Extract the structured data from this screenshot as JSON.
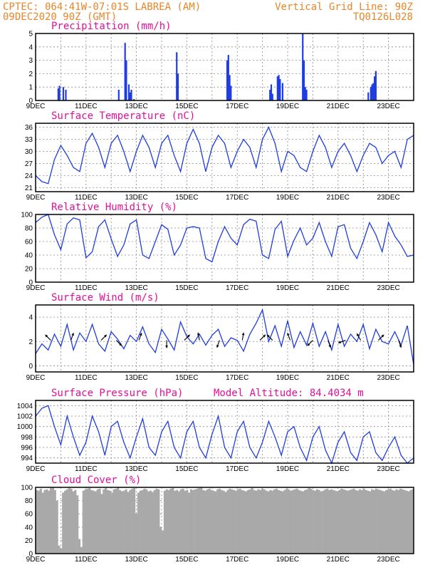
{
  "header": {
    "line1_left": "CPTEC:   064:41W-07:01S  LABREA (AM)",
    "line2_left": "09DEC2020 90Z (GMT)",
    "line1_right": "Vertical Grid Line: 90Z",
    "line2_right": "TQ0126L028"
  },
  "colors": {
    "series": "#1f3de0",
    "title": "#e0109a",
    "header": "#e8862a",
    "cloud": "#a9a9a9"
  },
  "x_axis": {
    "labels": [
      "9DEC",
      "11DEC",
      "13DEC",
      "15DEC",
      "17DEC",
      "19DEC",
      "21DEC",
      "23DEC"
    ],
    "label_days": [
      0,
      2,
      4,
      6,
      8,
      10,
      12,
      14
    ],
    "day_range": [
      0,
      15
    ]
  },
  "chart_data": [
    {
      "type": "bar",
      "title": "Precipitation (mm/h)",
      "ylim": [
        0,
        5
      ],
      "yticks": [
        "0",
        "1",
        "2",
        "3",
        "4",
        "5"
      ],
      "x": [
        0.9,
        0.95,
        1.1,
        1.2,
        3.3,
        3.55,
        3.6,
        3.7,
        3.75,
        3.8,
        3.9,
        5.6,
        5.65,
        7.6,
        7.65,
        7.7,
        7.75,
        9.3,
        9.35,
        9.4,
        9.6,
        9.65,
        9.7,
        9.8,
        10.6,
        10.65,
        10.7,
        10.75,
        13.2,
        13.3,
        13.35,
        13.4,
        13.45,
        13.5
      ],
      "values": [
        0.9,
        1.1,
        1.0,
        0.8,
        0.8,
        4.3,
        3.0,
        1.2,
        0.6,
        0.8,
        0.1,
        3.6,
        2.0,
        3.0,
        3.4,
        1.9,
        1.1,
        0.8,
        1.2,
        0.5,
        1.8,
        1.9,
        1.6,
        1.3,
        5.0,
        3.0,
        1.0,
        0.8,
        0.6,
        1.0,
        1.2,
        1.3,
        1.8,
        2.2
      ]
    },
    {
      "type": "line",
      "title": "Surface Temperature (nC)",
      "ylim": [
        20,
        37
      ],
      "yticks": [
        "21",
        "24",
        "27",
        "30",
        "33",
        "36"
      ],
      "x": [
        0,
        0.25,
        0.5,
        0.75,
        1,
        1.25,
        1.5,
        1.75,
        2,
        2.25,
        2.5,
        2.75,
        3,
        3.25,
        3.5,
        3.75,
        4,
        4.25,
        4.5,
        4.75,
        5,
        5.25,
        5.5,
        5.75,
        6,
        6.25,
        6.5,
        6.75,
        7,
        7.25,
        7.5,
        7.75,
        8,
        8.25,
        8.5,
        8.75,
        9,
        9.25,
        9.5,
        9.75,
        10,
        10.25,
        10.5,
        10.75,
        11,
        11.25,
        11.5,
        11.75,
        12,
        12.25,
        12.5,
        12.75,
        13,
        13.25,
        13.5,
        13.75,
        14,
        14.25,
        14.5,
        14.75,
        15
      ],
      "values": [
        24,
        22.5,
        22,
        28,
        31.5,
        29,
        26,
        25,
        32,
        34.5,
        31,
        26,
        32,
        34,
        30,
        25,
        30,
        34,
        31,
        26,
        32,
        34,
        29,
        25,
        32,
        35.5,
        32,
        25,
        31,
        34,
        32,
        26,
        30,
        33,
        31,
        26,
        33,
        36,
        32,
        25,
        30,
        29,
        26,
        25,
        30,
        34,
        31,
        26,
        30,
        32,
        29,
        25,
        29,
        32,
        31,
        27,
        29,
        30,
        26,
        33,
        34
      ]
    },
    {
      "type": "line",
      "title": "Relative Humidity (%)",
      "ylim": [
        0,
        100
      ],
      "yticks": [
        "0",
        "20",
        "40",
        "60",
        "80",
        "100"
      ],
      "x": [
        0,
        0.25,
        0.5,
        0.75,
        1,
        1.25,
        1.5,
        1.75,
        2,
        2.25,
        2.5,
        2.75,
        3,
        3.25,
        3.5,
        3.75,
        4,
        4.25,
        4.5,
        4.75,
        5,
        5.25,
        5.5,
        5.75,
        6,
        6.25,
        6.5,
        6.75,
        7,
        7.25,
        7.5,
        7.75,
        8,
        8.25,
        8.5,
        8.75,
        9,
        9.25,
        9.5,
        9.75,
        10,
        10.25,
        10.5,
        10.75,
        11,
        11.25,
        11.5,
        11.75,
        12,
        12.25,
        12.5,
        12.75,
        13,
        13.25,
        13.5,
        13.75,
        14,
        14.25,
        14.5,
        14.75,
        15
      ],
      "values": [
        88,
        96,
        100,
        70,
        48,
        86,
        95,
        92,
        36,
        45,
        82,
        92,
        64,
        38,
        55,
        86,
        92,
        40,
        35,
        60,
        85,
        78,
        40,
        55,
        80,
        82,
        80,
        35,
        30,
        60,
        82,
        65,
        55,
        85,
        93,
        90,
        40,
        35,
        78,
        90,
        38,
        62,
        80,
        55,
        65,
        88,
        60,
        38,
        82,
        85,
        50,
        35,
        60,
        88,
        70,
        45,
        88,
        68,
        55,
        38,
        40
      ]
    },
    {
      "type": "line",
      "title": "Surface Wind (m/s)",
      "ylim": [
        -0.5,
        5
      ],
      "yticks": [
        "0",
        "2",
        "4"
      ],
      "x": [
        0,
        0.25,
        0.5,
        0.75,
        1,
        1.25,
        1.5,
        1.75,
        2,
        2.25,
        2.5,
        2.75,
        3,
        3.25,
        3.5,
        3.75,
        4,
        4.25,
        4.5,
        4.75,
        5,
        5.25,
        5.5,
        5.75,
        6,
        6.25,
        6.5,
        6.75,
        7,
        7.25,
        7.5,
        7.75,
        8,
        8.25,
        8.5,
        8.75,
        9,
        9.25,
        9.5,
        9.75,
        10,
        10.25,
        10.5,
        10.75,
        11,
        11.25,
        11.5,
        11.75,
        12,
        12.25,
        12.5,
        12.75,
        13,
        13.25,
        13.5,
        13.75,
        14,
        14.25,
        14.5,
        14.75,
        15
      ],
      "values": [
        1,
        1.8,
        1.3,
        2.6,
        1.6,
        3.4,
        1.3,
        2.7,
        2,
        3.4,
        1.8,
        1.2,
        2.8,
        2.2,
        1.4,
        2.5,
        2,
        3.2,
        1.8,
        1.1,
        3,
        2.2,
        1.3,
        3.6,
        2.4,
        1.8,
        2.6,
        1.7,
        2.5,
        3,
        1.6,
        2.3,
        2.1,
        1.2,
        2.6,
        3.5,
        4.6,
        2,
        3.3,
        1.6,
        3.7,
        1.5,
        2.8,
        1.7,
        3.5,
        1.6,
        2.8,
        1.3,
        3.4,
        1.6,
        2.6,
        2,
        3.4,
        1.4,
        3,
        2,
        1.8,
        2.8,
        1.7,
        3.3,
        0.1
      ],
      "arrows": [
        {
          "day": 0.6,
          "dir": 315
        },
        {
          "day": 1.4,
          "dir": 20
        },
        {
          "day": 2.6,
          "dir": 45
        },
        {
          "day": 3.2,
          "dir": 135
        },
        {
          "day": 4.1,
          "dir": 20
        },
        {
          "day": 5.2,
          "dir": 180
        },
        {
          "day": 5.9,
          "dir": 45
        },
        {
          "day": 6.5,
          "dir": 350
        },
        {
          "day": 7.3,
          "dir": 200
        },
        {
          "day": 8.2,
          "dir": 10
        },
        {
          "day": 8.9,
          "dir": 45
        },
        {
          "day": 9.4,
          "dir": 315
        },
        {
          "day": 10.1,
          "dir": 340
        },
        {
          "day": 11.0,
          "dir": 225
        },
        {
          "day": 11.6,
          "dir": 160
        },
        {
          "day": 12.3,
          "dir": 250
        },
        {
          "day": 12.9,
          "dir": 330
        },
        {
          "day": 13.6,
          "dir": 45
        },
        {
          "day": 14.4,
          "dir": 160
        }
      ]
    },
    {
      "type": "line",
      "title": "Surface Pressure (hPa)",
      "annotation": "Model Altitude: 84.4034 m",
      "ylim": [
        993,
        1005
      ],
      "yticks": [
        "994",
        "996",
        "998",
        "1000",
        "1002",
        "1004"
      ],
      "x": [
        0,
        0.25,
        0.5,
        0.75,
        1,
        1.25,
        1.5,
        1.75,
        2,
        2.25,
        2.5,
        2.75,
        3,
        3.25,
        3.5,
        3.75,
        4,
        4.25,
        4.5,
        4.75,
        5,
        5.25,
        5.5,
        5.75,
        6,
        6.25,
        6.5,
        6.75,
        7,
        7.25,
        7.5,
        7.75,
        8,
        8.25,
        8.5,
        8.75,
        9,
        9.25,
        9.5,
        9.75,
        10,
        10.25,
        10.5,
        10.75,
        11,
        11.25,
        11.5,
        11.75,
        12,
        12.25,
        12.5,
        12.75,
        13,
        13.25,
        13.5,
        13.75,
        14,
        14.25,
        14.5,
        14.75,
        15
      ],
      "values": [
        1002,
        1003.5,
        1004,
        1000,
        996.5,
        1002,
        998,
        994.5,
        997,
        1002,
        999,
        994.5,
        1000,
        1001,
        997,
        994,
        998,
        1001.5,
        996,
        994.5,
        999,
        1001,
        996,
        994,
        999,
        1001,
        996,
        994,
        998.5,
        1002,
        996,
        994,
        999,
        1001,
        996,
        994,
        997,
        1001,
        998,
        994.5,
        999,
        1000,
        996,
        993.5,
        998,
        1000,
        995.5,
        993,
        997,
        999,
        995,
        993.5,
        998,
        999,
        995,
        993.5,
        996,
        998,
        994.5,
        993,
        994
      ]
    },
    {
      "type": "bar",
      "title": "Cloud Cover (%)",
      "ylim": [
        0,
        100
      ],
      "yticks": [
        "0",
        "20",
        "40",
        "60",
        "80",
        "100"
      ],
      "values": [
        96,
        95,
        98,
        92,
        96,
        97,
        95,
        99,
        100,
        96,
        80,
        12,
        8,
        92,
        95,
        97,
        99,
        98,
        94,
        96,
        88,
        22,
        10,
        95,
        97,
        98,
        99,
        96,
        95,
        94,
        97,
        98,
        90,
        97,
        99,
        96,
        95,
        92,
        97,
        98,
        100,
        96,
        94,
        95,
        97,
        93,
        96,
        98,
        99,
        60,
        92,
        95,
        96,
        98,
        97,
        94,
        95,
        93,
        96,
        98,
        97,
        40,
        35,
        95,
        97,
        96,
        98,
        99,
        95,
        96,
        94,
        97,
        98,
        95,
        96,
        92,
        97,
        96,
        97,
        98,
        99,
        100,
        96,
        95,
        97,
        98,
        96,
        95,
        94,
        97,
        98,
        96,
        95,
        93,
        96,
        98,
        97,
        96,
        95,
        97,
        98,
        96,
        95,
        94,
        96,
        97,
        99,
        96,
        95,
        97,
        96,
        98,
        97,
        95,
        94,
        96,
        95,
        97,
        98,
        96,
        95,
        94,
        96,
        98,
        97,
        95,
        96,
        97,
        98,
        96,
        95,
        94,
        96,
        97,
        99,
        98,
        96,
        95,
        97,
        96,
        94,
        95,
        97,
        98,
        96,
        97,
        96,
        95,
        94,
        96,
        98,
        97,
        96,
        95,
        96,
        97,
        98,
        96,
        95,
        97,
        96,
        98,
        96,
        95,
        94,
        97,
        96,
        98,
        97,
        96,
        95,
        94,
        96,
        97,
        98,
        96,
        95,
        97,
        96,
        98,
        97,
        96,
        95,
        94,
        96,
        97
      ]
    }
  ]
}
